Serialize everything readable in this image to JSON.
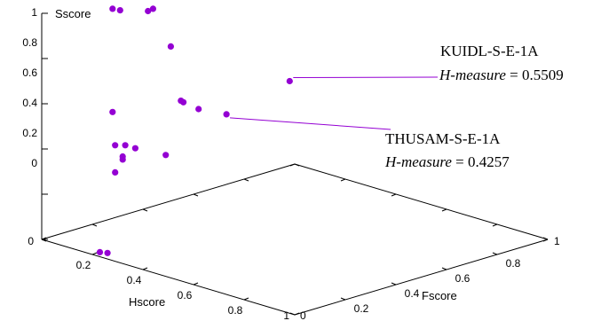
{
  "chart_data": {
    "type": "scatter",
    "title": "",
    "series": [
      {
        "points": [
          {
            "h": 0.11,
            "f": 0.17,
            "s": 1.0
          },
          {
            "h": 0.12,
            "f": 0.19,
            "s": 0.99
          },
          {
            "h": 0.15,
            "f": 0.27,
            "s": 0.97
          },
          {
            "h": 0.16,
            "f": 0.28,
            "s": 0.98
          },
          {
            "h": 0.13,
            "f": 0.38,
            "s": 0.77
          },
          {
            "h": 0.18,
            "f": 0.37,
            "s": 0.55
          },
          {
            "h": 0.21,
            "f": 0.35,
            "s": 0.56
          },
          {
            "h": 0.21,
            "f": 0.41,
            "s": 0.51
          },
          {
            "h": 0.12,
            "f": 0.16,
            "s": 0.55
          },
          {
            "h": 0.21,
            "f": 0.28,
            "s": 0.35
          },
          {
            "h": 0.21,
            "f": 0.16,
            "s": 0.42
          },
          {
            "h": 0.2,
            "f": 0.13,
            "s": 0.44
          },
          {
            "h": 0.18,
            "f": 0.11,
            "s": 0.44
          },
          {
            "h": 0.21,
            "f": 0.11,
            "s": 0.4
          },
          {
            "h": 0.21,
            "f": 0.08,
            "s": 0.34
          },
          {
            "h": 0.23,
            "f": 0.09,
            "s": 0.4
          },
          {
            "h": 0.2,
            "f": 0.03,
            "s": 0.0
          },
          {
            "h": 0.22,
            "f": 0.04,
            "s": 0.0
          },
          {
            "h": 0.4,
            "f": 0.58,
            "s": 0.64
          },
          {
            "h": 0.36,
            "f": 0.37,
            "s": 0.55
          }
        ]
      }
    ],
    "axes": {
      "h": {
        "label": "Hscore",
        "range": [
          0,
          1
        ],
        "ticks": [
          0,
          0.2,
          0.4,
          0.6,
          0.8,
          1
        ],
        "tick_labels": [
          "0",
          "0.2",
          "0.4",
          "0.6",
          "0.8",
          "1"
        ]
      },
      "f": {
        "label": "Fscore",
        "range": [
          0,
          1
        ],
        "ticks": [
          0,
          0.2,
          0.4,
          0.6,
          0.8,
          1
        ],
        "tick_labels": [
          "0",
          "0.2",
          "0.4",
          "0.6",
          "0.8",
          "1"
        ]
      },
      "s": {
        "label": "Sscore",
        "range": [
          0,
          1
        ],
        "ticks": [
          0,
          0.2,
          0.4,
          0.6,
          0.8,
          1
        ],
        "tick_labels": [
          "0",
          "0.2",
          "0.4",
          "0.6",
          "0.8",
          "1"
        ]
      }
    },
    "annotations": [
      {
        "name": "KUIDL-S-E-1A",
        "measure_label": "H-measure",
        "value": "0.5509",
        "point_index": 18
      },
      {
        "name": "THUSAM-S-E-1A",
        "measure_label": "H-measure",
        "value": "0.4257",
        "point_index": 19
      }
    ],
    "grid": false,
    "point_color": "#9400d3",
    "axis_color": "#000000"
  }
}
